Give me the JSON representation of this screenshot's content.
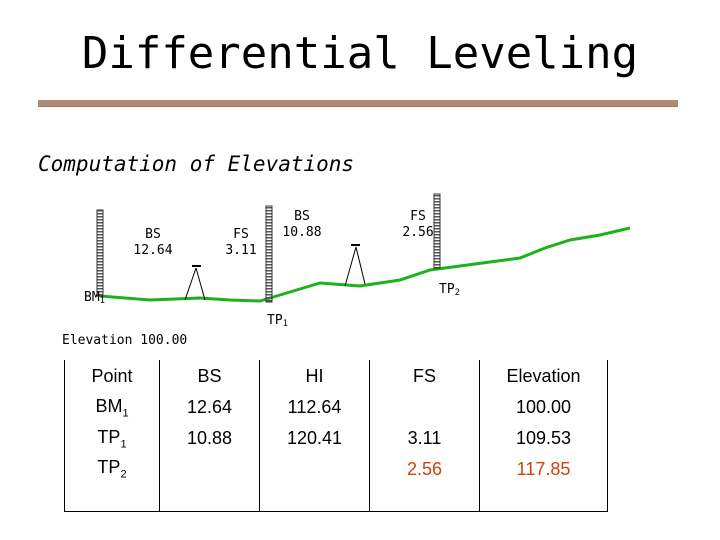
{
  "title": "Differential Leveling",
  "subtitle": "Computation of Elevations",
  "diagram": {
    "rod1": {
      "label": "BS",
      "value": "12.64"
    },
    "rod2": {
      "label": "FS",
      "value": "3.11"
    },
    "rod3": {
      "label": "BS",
      "value": "10.88"
    },
    "rod4": {
      "label": "FS",
      "value": "2.56"
    },
    "bm_label": "BM",
    "bm_sub": "1",
    "tp1_label": "TP",
    "tp1_sub": "1",
    "tp2_label": "TP",
    "tp2_sub": "2",
    "elevation_caption": "Elevation 100.00"
  },
  "table": {
    "headers": {
      "point": "Point",
      "bs": "BS",
      "hi": "HI",
      "fs": "FS",
      "elevation": "Elevation"
    },
    "rows": [
      {
        "point": "BM",
        "point_sub": "1",
        "bs": "12.64",
        "hi": "112.64",
        "fs": "",
        "elevation": "100.00"
      },
      {
        "point": "TP",
        "point_sub": "1",
        "bs": "10.88",
        "hi": "120.41",
        "fs": "3.11",
        "elevation": "109.53"
      },
      {
        "point": "TP",
        "point_sub": "2",
        "bs": "",
        "hi": "",
        "fs": "2.56",
        "elevation": "117.85"
      }
    ]
  },
  "colors": {
    "ground": "#1bb21b",
    "rule": "#b08a72",
    "highlight": "#d2400c"
  }
}
